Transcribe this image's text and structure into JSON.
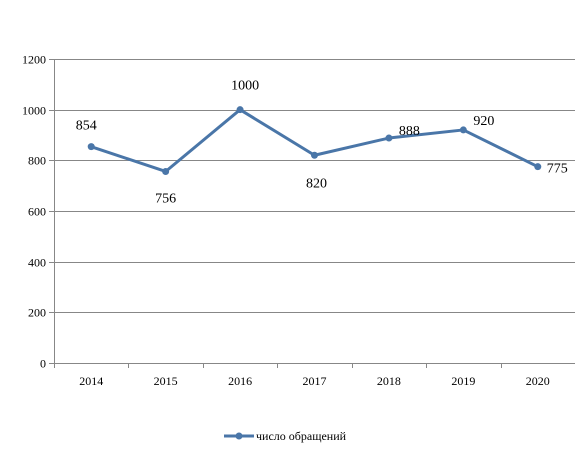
{
  "chart_data": {
    "type": "line",
    "title": "",
    "xlabel": "",
    "ylabel": "",
    "categories": [
      "2014",
      "2015",
      "2016",
      "2017",
      "2018",
      "2019",
      "2020"
    ],
    "series": [
      {
        "name": "число обращений",
        "values": [
          854,
          756,
          1000,
          820,
          888,
          920,
          775
        ],
        "labels": [
          "854",
          "756",
          "1000",
          "820",
          "888",
          "920",
          "775"
        ],
        "color": "#4a76a8"
      }
    ],
    "ylim": [
      0,
      1200
    ],
    "yticks": [
      0,
      200,
      400,
      600,
      800,
      1000,
      1200
    ],
    "y_tick_labels": [
      "0",
      "200",
      "400",
      "600",
      "800",
      "1000",
      "1200"
    ],
    "grid": true,
    "legend_position": "bottom"
  }
}
